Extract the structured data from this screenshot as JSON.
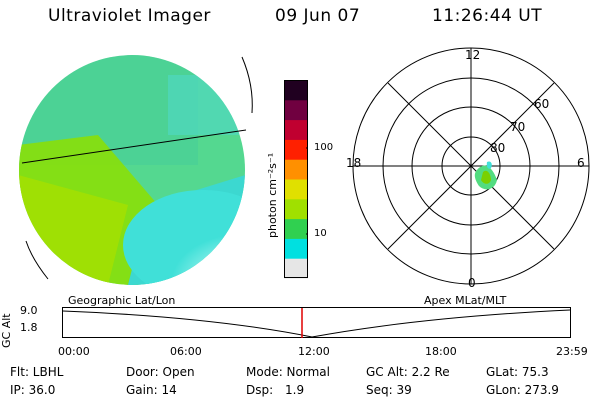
{
  "header": {
    "title": "Ultraviolet Imager",
    "date": "09 Jun 07",
    "time": "11:26:44 UT"
  },
  "colorbar": {
    "unit_label": "photon cm⁻²s⁻¹",
    "ticks": [
      "100",
      "10"
    ],
    "colors": [
      "#e6e6e6",
      "#00e0e0",
      "#30d050",
      "#a0e000",
      "#e0e000",
      "#ff9000",
      "#ff2000",
      "#c00030",
      "#700040",
      "#200020"
    ]
  },
  "polar_plot": {
    "mlt_labels": {
      "top": "12",
      "left": "18",
      "right": "6",
      "bottom": "0"
    },
    "lat_labels": [
      "60",
      "70",
      "80"
    ]
  },
  "timeline": {
    "ylabel": "GC Alt",
    "y_ticks": [
      "9.0",
      "1.8"
    ],
    "left_label": "Geographic Lat/Lon",
    "right_label": "Apex MLat/MLT",
    "x_ticks": [
      "00:00",
      "06:00",
      "12:00",
      "18:00",
      "23:59"
    ]
  },
  "info": {
    "filter": "Flt: LBHL",
    "door": "Door: Open",
    "mode": "Mode: Normal",
    "gc_alt": "GC Alt: 2.2 Re",
    "glat": "GLat:  75.3",
    "ip": "IP: 36.0",
    "gain": "Gain: 14",
    "dsp_label": "Dsp:",
    "dsp_value": "1.9",
    "seq": "Seq: 39",
    "glon": "GLon: 273.9"
  }
}
